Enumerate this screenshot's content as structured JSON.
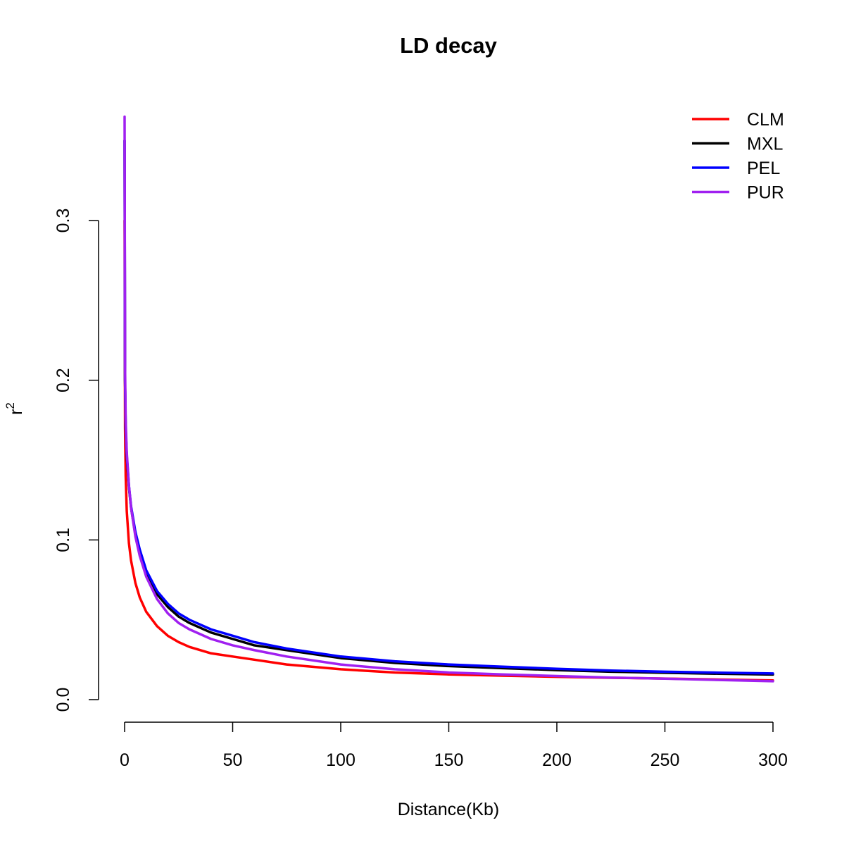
{
  "chart_data": {
    "type": "line",
    "title": "LD decay",
    "xlabel": "Distance(Kb)",
    "ylabel": "r",
    "ylabel_superscript": "2",
    "xlim": [
      0,
      300
    ],
    "ylim": [
      0,
      0.365
    ],
    "xticks": [
      0,
      50,
      100,
      150,
      200,
      250,
      300
    ],
    "yticks": [
      0.0,
      0.1,
      0.2,
      0.3
    ],
    "xtick_labels": [
      "0",
      "50",
      "100",
      "150",
      "200",
      "250",
      "300"
    ],
    "ytick_labels": [
      "0.0",
      "0.1",
      "0.2",
      "0.3"
    ],
    "grid": false,
    "legend_position": "top-right",
    "x": [
      0,
      0.2,
      0.5,
      1,
      2,
      3,
      5,
      7,
      10,
      15,
      20,
      25,
      30,
      40,
      50,
      60,
      75,
      100,
      125,
      150,
      175,
      200,
      225,
      250,
      275,
      300
    ],
    "series": [
      {
        "name": "CLM",
        "color": "#ff0000",
        "values": [
          0.3,
          0.17,
          0.14,
          0.118,
          0.098,
          0.087,
          0.073,
          0.064,
          0.055,
          0.046,
          0.04,
          0.036,
          0.033,
          0.029,
          0.027,
          0.025,
          0.022,
          0.019,
          0.017,
          0.0158,
          0.015,
          0.0143,
          0.0137,
          0.0132,
          0.0126,
          0.012
        ]
      },
      {
        "name": "MXL",
        "color": "#000000",
        "values": [
          0.35,
          0.2,
          0.17,
          0.152,
          0.133,
          0.12,
          0.103,
          0.092,
          0.079,
          0.066,
          0.058,
          0.052,
          0.048,
          0.042,
          0.038,
          0.034,
          0.031,
          0.026,
          0.023,
          0.021,
          0.0197,
          0.0185,
          0.0175,
          0.0168,
          0.0162,
          0.0157
        ]
      },
      {
        "name": "PEL",
        "color": "#0000ff",
        "values": [
          0.35,
          0.2,
          0.17,
          0.153,
          0.134,
          0.121,
          0.105,
          0.094,
          0.081,
          0.068,
          0.06,
          0.054,
          0.05,
          0.044,
          0.04,
          0.036,
          0.032,
          0.027,
          0.024,
          0.022,
          0.0206,
          0.0193,
          0.0182,
          0.0175,
          0.0169,
          0.0164
        ]
      },
      {
        "name": "PUR",
        "color": "#a020f0",
        "values": [
          0.365,
          0.21,
          0.175,
          0.155,
          0.134,
          0.12,
          0.102,
          0.09,
          0.077,
          0.063,
          0.054,
          0.048,
          0.044,
          0.038,
          0.034,
          0.031,
          0.027,
          0.022,
          0.019,
          0.017,
          0.0158,
          0.0148,
          0.0138,
          0.0131,
          0.0123,
          0.0115
        ]
      }
    ]
  }
}
